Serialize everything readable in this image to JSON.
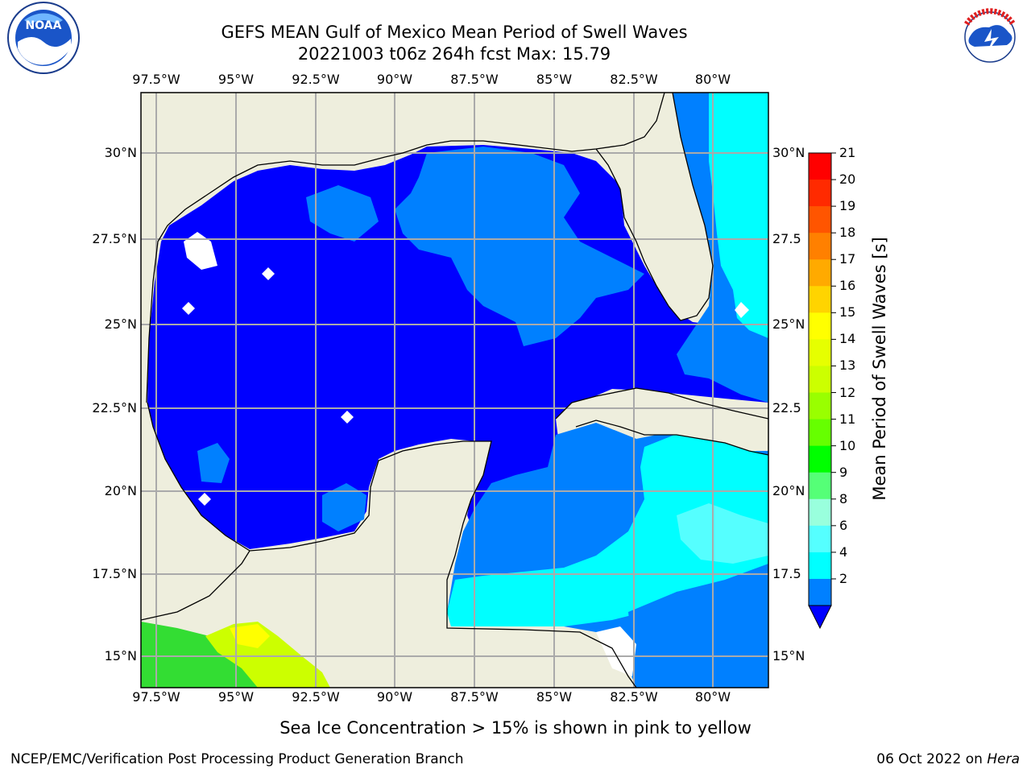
{
  "title_line1": "GEFS MEAN Gulf of Mexico Mean Period of Swell Waves",
  "title_line2": "20221003 t06z 264h fcst   Max: 15.79",
  "lon_ticks": [
    "97.5°W",
    "95°W",
    "92.5°W",
    "90°W",
    "87.5°W",
    "85°W",
    "82.5°W",
    "80°W"
  ],
  "lat_ticks_left": [
    "30°N",
    "27.5°N",
    "25°N",
    "22.5°N",
    "20°N",
    "17.5°N",
    "15°N"
  ],
  "lat_ticks_right": [
    "30°N",
    "27.5",
    "25°N",
    "22.5",
    "20°N",
    "17.5",
    "15°N"
  ],
  "colorbar": {
    "label": "Mean Period of Swell Waves [s]",
    "ticks": [
      "21",
      "20",
      "19",
      "18",
      "17",
      "16",
      "15",
      "14",
      "13",
      "12",
      "11",
      "10",
      "9",
      "8",
      "6",
      "4",
      "2"
    ],
    "colors": [
      "#ff0000",
      "#ff2a00",
      "#ff5500",
      "#ff8000",
      "#ffaa00",
      "#ffd400",
      "#ffff00",
      "#e6ff00",
      "#ccff00",
      "#99ff00",
      "#66ff00",
      "#00ff00",
      "#55ff77",
      "#99ffdd",
      "#55ffff",
      "#00ffff",
      "#0080ff"
    ],
    "under_color": "#0000ff"
  },
  "map_colors": {
    "land": "#eeeedd",
    "deep_blue": "#0000ff",
    "mid_blue": "#0080ff",
    "cyan": "#00ffff",
    "light_cyan": "#55ffff",
    "green": "#33dd33",
    "yellow_green": "#ccff00",
    "yellow": "#ffff00",
    "grid": "#aaaaaa"
  },
  "ice_note": "Sea Ice Concentration > 15% is shown in pink to yellow",
  "footer_left": "NCEP/EMC/Verification Post Processing Product Generation Branch",
  "footer_date": "06 Oct 2022 on ",
  "footer_host": "Hera",
  "logos": {
    "left": "NOAA",
    "right": "NATIONAL WEATHER SERVICE"
  }
}
